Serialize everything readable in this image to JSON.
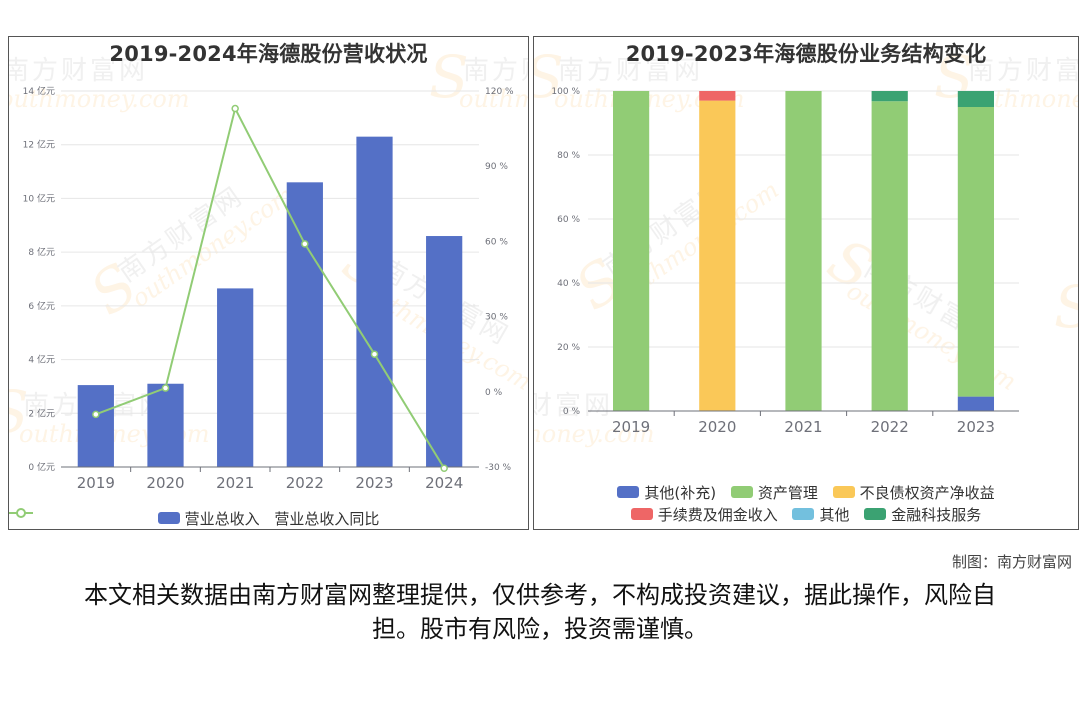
{
  "watermark": {
    "cn": "南方财富网",
    "en": "outhmoney.com",
    "letter": "S"
  },
  "credit": "制图：南方财富网",
  "disclaimer": "本文相关数据由南方财富网整理提供，仅供参考，不构成投资建议，据此操作，风险自担。股市有风险，投资需谨慎。",
  "colors": {
    "revenue_bar": "#5470c6",
    "yoy_line": "#91cc75",
    "other_supp": "#5470c6",
    "asset_mgmt": "#91cc75",
    "npa": "#fac858",
    "fees": "#ee6666",
    "other": "#73c0de",
    "fintech": "#3ba272"
  },
  "chart_data": [
    {
      "type": "bar",
      "title": "2019-2024年海德股份营收状况",
      "categories": [
        "2019",
        "2020",
        "2021",
        "2022",
        "2023",
        "2024"
      ],
      "y_left": {
        "ticks": [
          "0 亿元",
          "2 亿元",
          "4 亿元",
          "6 亿元",
          "8 亿元",
          "10 亿元",
          "12 亿元",
          "14 亿元"
        ],
        "range": [
          0,
          14
        ]
      },
      "y_right": {
        "ticks": [
          "-30 %",
          "0 %",
          "30 %",
          "60 %",
          "90 %",
          "120 %"
        ],
        "range": [
          -30,
          120
        ]
      },
      "series": [
        {
          "name": "营业总收入",
          "kind": "bar",
          "axis": "left",
          "values": [
            3.05,
            3.1,
            6.65,
            10.6,
            12.3,
            8.6
          ]
        },
        {
          "name": "营业总收入同比",
          "kind": "line",
          "axis": "right",
          "values": [
            -9,
            1.5,
            113,
            59,
            15,
            -30.5
          ]
        }
      ],
      "legend_position": "bottom",
      "grid": true
    },
    {
      "type": "bar",
      "stacked": true,
      "title": "2019-2023年海德股份业务结构变化",
      "categories": [
        "2019",
        "2020",
        "2021",
        "2022",
        "2023"
      ],
      "y": {
        "ticks": [
          "0 %",
          "20 %",
          "40 %",
          "60 %",
          "80 %",
          "100 %"
        ],
        "range": [
          0,
          100
        ]
      },
      "series": [
        {
          "name": "其他(补充)",
          "values": [
            0,
            0,
            0,
            0,
            4.5
          ]
        },
        {
          "name": "资产管理",
          "values": [
            100,
            0,
            100,
            96.8,
            90.5
          ]
        },
        {
          "name": "不良债权资产净收益",
          "values": [
            0,
            97,
            0,
            0,
            0
          ]
        },
        {
          "name": "手续费及佣金收入",
          "values": [
            0,
            3,
            0,
            0,
            0
          ]
        },
        {
          "name": "其他",
          "values": [
            0,
            0,
            0,
            0,
            0
          ]
        },
        {
          "name": "金融科技服务",
          "values": [
            0,
            0,
            0,
            3.2,
            5
          ]
        }
      ],
      "legend_position": "bottom",
      "grid": true
    }
  ]
}
